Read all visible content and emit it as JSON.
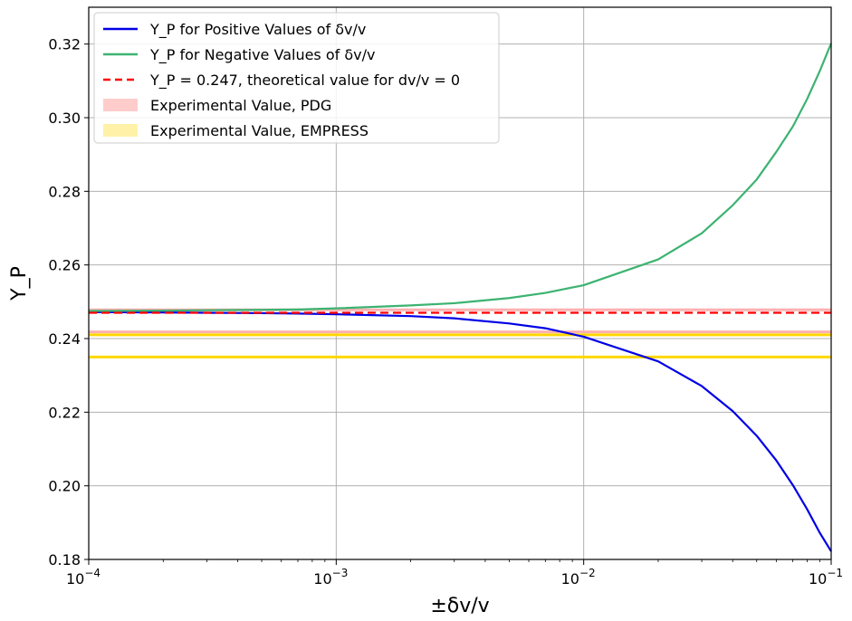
{
  "chart_data": {
    "type": "line",
    "title": "",
    "xlabel": "±δv/v",
    "ylabel": "Y_P",
    "x_scale": "log",
    "xlim": [
      0.0001,
      0.1
    ],
    "ylim": [
      0.18,
      0.33
    ],
    "grid": true,
    "legend_position": "top-left",
    "x_ticks": [
      {
        "value": 0.0001,
        "base": "10",
        "exp": "−4"
      },
      {
        "value": 0.001,
        "base": "10",
        "exp": "−3"
      },
      {
        "value": 0.01,
        "base": "10",
        "exp": "−2"
      },
      {
        "value": 0.1,
        "base": "10",
        "exp": "−1"
      }
    ],
    "y_ticks": [
      {
        "value": 0.18,
        "label": "0.18"
      },
      {
        "value": 0.2,
        "label": "0.20"
      },
      {
        "value": 0.22,
        "label": "0.22"
      },
      {
        "value": 0.24,
        "label": "0.24"
      },
      {
        "value": 0.26,
        "label": "0.26"
      },
      {
        "value": 0.28,
        "label": "0.28"
      },
      {
        "value": 0.3,
        "label": "0.30"
      },
      {
        "value": 0.32,
        "label": "0.32"
      }
    ],
    "series": [
      {
        "name": "Y_P for Positive Values of δv/v",
        "color": "#0000e6",
        "style": "solid",
        "x": [
          0.0001,
          0.0002,
          0.0003,
          0.0005,
          0.0007,
          0.001,
          0.002,
          0.003,
          0.005,
          0.007,
          0.01,
          0.02,
          0.03,
          0.04,
          0.05,
          0.06,
          0.07,
          0.08,
          0.09,
          0.1
        ],
        "y": [
          0.2472,
          0.2471,
          0.247,
          0.2469,
          0.2468,
          0.2466,
          0.2461,
          0.2455,
          0.2441,
          0.2428,
          0.2405,
          0.2338,
          0.2271,
          0.2203,
          0.2136,
          0.2069,
          0.2002,
          0.1936,
          0.1872,
          0.1822
        ]
      },
      {
        "name": "Y_P for Negative Values of δv/v",
        "color": "#3cb371",
        "style": "solid",
        "x": [
          0.0001,
          0.0002,
          0.0003,
          0.0005,
          0.0007,
          0.001,
          0.002,
          0.003,
          0.005,
          0.007,
          0.01,
          0.02,
          0.03,
          0.04,
          0.05,
          0.06,
          0.07,
          0.08,
          0.09,
          0.1
        ],
        "y": [
          0.2475,
          0.2476,
          0.2477,
          0.2478,
          0.2479,
          0.2482,
          0.249,
          0.2496,
          0.251,
          0.2524,
          0.2545,
          0.2615,
          0.2686,
          0.2762,
          0.2832,
          0.2907,
          0.2976,
          0.3051,
          0.3127,
          0.3202
        ]
      },
      {
        "name": "Y_P = 0.247, theoretical value for dv/v = 0",
        "color": "#ff0000",
        "style": "dashed",
        "x": [
          0.0001,
          0.1
        ],
        "y": [
          0.247,
          0.247
        ]
      }
    ],
    "bands": [
      {
        "name": "Experimental Value, PDG",
        "color": "#ffb0b0",
        "y_lines": [
          0.2418,
          0.2478
        ]
      },
      {
        "name": "Experimental Value, EMPRESS",
        "color": "#ffd700",
        "y_lines": [
          0.235,
          0.241
        ]
      }
    ],
    "legend": [
      {
        "label": "Y_P for Positive Values of δv/v",
        "color": "#0000e6",
        "kind": "line"
      },
      {
        "label": "Y_P for Negative Values of δv/v",
        "color": "#3cb371",
        "kind": "line"
      },
      {
        "label": "Y_P = 0.247, theoretical value for dv/v = 0",
        "color": "#ff0000",
        "kind": "dashed"
      },
      {
        "label": "Experimental Value, PDG",
        "color": "#ffcccc",
        "kind": "patch"
      },
      {
        "label": "Experimental Value, EMPRESS",
        "color": "#fff2a8",
        "kind": "patch"
      }
    ]
  }
}
